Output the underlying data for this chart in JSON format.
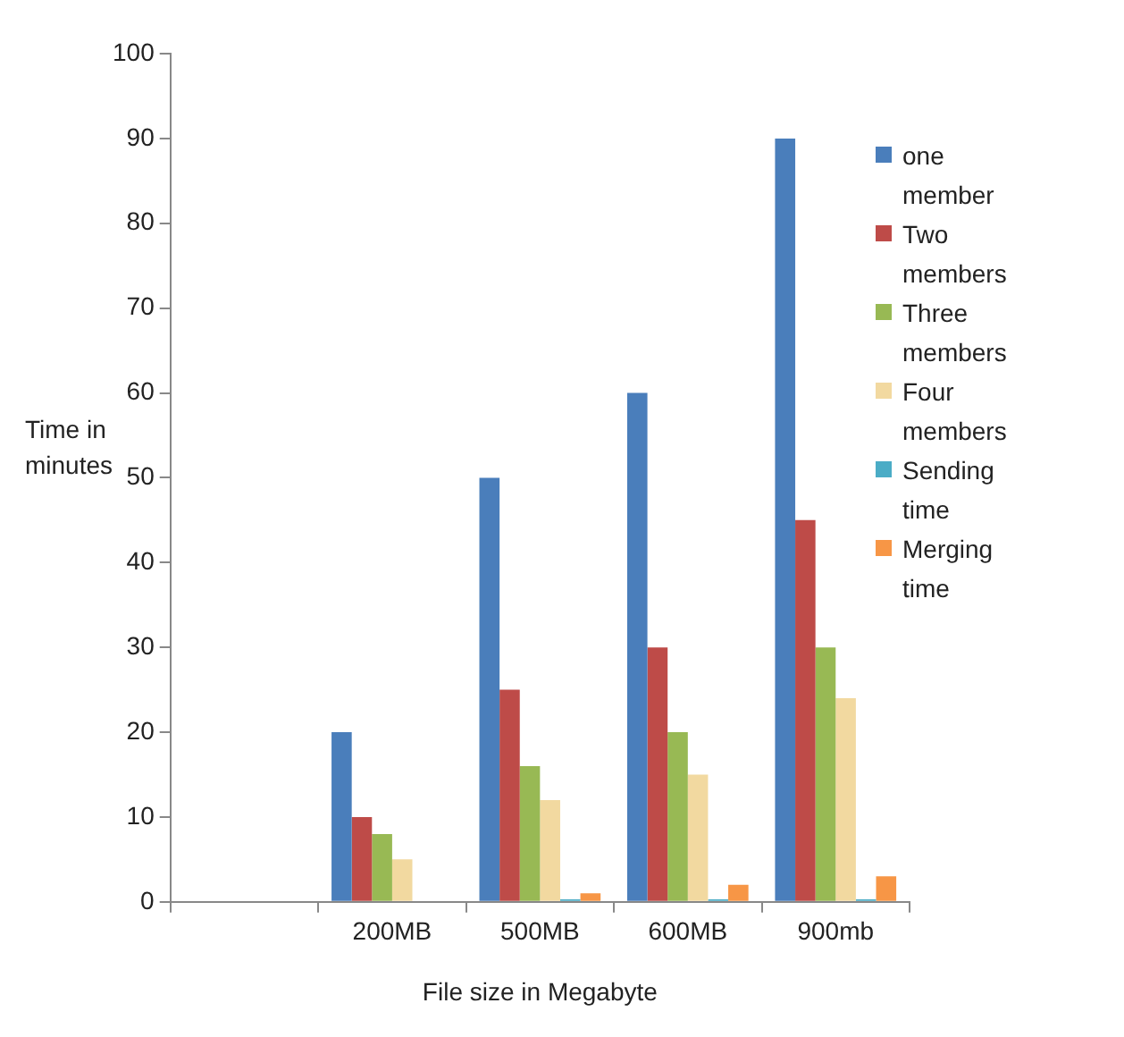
{
  "chart_data": {
    "type": "bar",
    "xlabel": "File size in Megabyte",
    "ylabel": "Time in minutes",
    "categories": [
      null,
      "200MB",
      "500MB",
      "600MB",
      "900mb"
    ],
    "series": [
      {
        "name": "one member",
        "color": "#4a7ebb",
        "values": [
          null,
          20,
          50,
          60,
          90
        ]
      },
      {
        "name": "Two members",
        "color": "#be4b48",
        "values": [
          null,
          10,
          25,
          30,
          45
        ]
      },
      {
        "name": "Three members",
        "color": "#98b954",
        "values": [
          null,
          8,
          16,
          20,
          30
        ]
      },
      {
        "name": "Four members",
        "color": "#f2d9a0",
        "values": [
          null,
          5,
          12,
          15,
          24
        ]
      },
      {
        "name": "Sending time",
        "color": "#4bacc6",
        "values": [
          null,
          null,
          0.3,
          0.3,
          0.3
        ]
      },
      {
        "name": "Merging time",
        "color": "#f79646",
        "values": [
          null,
          null,
          1,
          2,
          3
        ]
      }
    ],
    "ylim": [
      0,
      100
    ],
    "yticks": [
      0,
      10,
      20,
      30,
      40,
      50,
      60,
      70,
      80,
      90,
      100
    ],
    "grid": false,
    "legend": "right"
  }
}
